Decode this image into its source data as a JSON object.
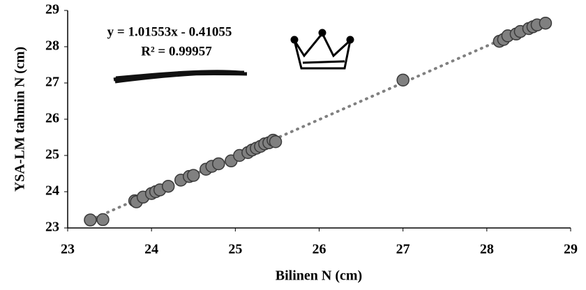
{
  "chart_data": {
    "type": "scatter",
    "x_label": "Bilinen N (cm)",
    "y_label": "YSA-LM tahmin N (cm)",
    "annotations": [
      "y = 1.01553x - 0.41055",
      "R² = 0.99957"
    ],
    "color": "#808080",
    "x": [
      23.27,
      23.42,
      23.8,
      23.82,
      23.9,
      24.0,
      24.05,
      24.1,
      24.2,
      24.35,
      24.45,
      24.5,
      24.65,
      24.72,
      24.8,
      24.95,
      25.05,
      25.15,
      25.2,
      25.25,
      25.3,
      25.35,
      25.4,
      25.45,
      25.48,
      27.0,
      28.15,
      28.2,
      28.25,
      28.35,
      28.4,
      28.5,
      28.55,
      28.6,
      28.7
    ],
    "y": [
      23.22,
      23.23,
      23.75,
      23.72,
      23.85,
      23.95,
      24.0,
      24.05,
      24.15,
      24.32,
      24.42,
      24.45,
      24.62,
      24.7,
      24.77,
      24.85,
      25.0,
      25.08,
      25.15,
      25.2,
      25.25,
      25.32,
      25.35,
      25.42,
      25.38,
      27.08,
      28.15,
      28.2,
      28.3,
      28.35,
      28.42,
      28.5,
      28.55,
      28.6,
      28.65
    ],
    "trendline": {
      "x": [
        23.27,
        28.7
      ],
      "y": [
        23.22,
        28.73
      ]
    },
    "xlim": [
      23,
      29
    ],
    "ylim": [
      23,
      29
    ],
    "xticks": [
      23,
      24,
      25,
      26,
      27,
      28,
      29
    ],
    "yticks": [
      23,
      24,
      25,
      26,
      27,
      28,
      29
    ]
  }
}
